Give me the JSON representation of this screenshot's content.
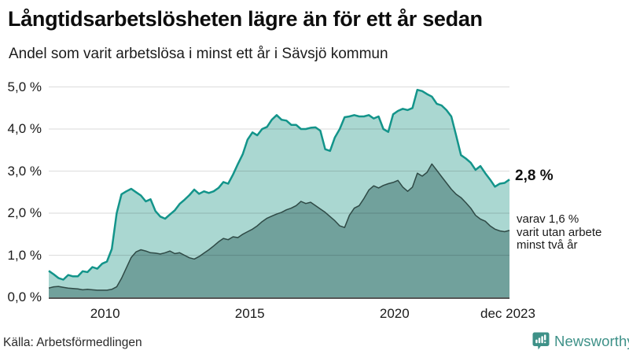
{
  "header": {
    "title": "Långtidsarbetslösheten lägre än för ett år sedan",
    "subtitle": "Andel som varit arbetslösa i minst ett år i Sävsjö kommun"
  },
  "footer": {
    "source": "Källa: Arbetsförmedlingen",
    "brand": "Newsworthy",
    "brand_color": "#3e9188"
  },
  "chart_data": {
    "type": "area",
    "unit": "%",
    "x_range": [
      2008,
      2023.9167
    ],
    "ylim": [
      0,
      5
    ],
    "grid_color": "rgba(0,0,0,0.12)",
    "baseline_color": "#555555",
    "yticks": [
      {
        "label": "0,0 %",
        "value": 0
      },
      {
        "label": "1,0 %",
        "value": 1
      },
      {
        "label": "2,0 %",
        "value": 2
      },
      {
        "label": "3,0 %",
        "value": 3
      },
      {
        "label": "4,0 %",
        "value": 4
      },
      {
        "label": "5,0 %",
        "value": 5
      }
    ],
    "xticks": [
      {
        "label": "2010",
        "year": 2010
      },
      {
        "label": "2015",
        "year": 2015
      },
      {
        "label": "2020",
        "year": 2020
      },
      {
        "label": "dec 2023",
        "year": 2023.9167
      }
    ],
    "series": [
      {
        "name": "Arbetslösa minst ett år",
        "stroke": "#13948a",
        "fill": "#aad7d1",
        "stroke_width": 2.5,
        "values": [
          0.63,
          0.55,
          0.46,
          0.42,
          0.53,
          0.5,
          0.5,
          0.62,
          0.6,
          0.72,
          0.68,
          0.8,
          0.85,
          1.15,
          2.0,
          2.45,
          2.52,
          2.58,
          2.5,
          2.42,
          2.28,
          2.33,
          2.05,
          1.92,
          1.87,
          1.97,
          2.07,
          2.22,
          2.32,
          2.43,
          2.56,
          2.46,
          2.52,
          2.48,
          2.52,
          2.6,
          2.74,
          2.7,
          2.92,
          3.17,
          3.4,
          3.75,
          3.92,
          3.85,
          4.0,
          4.05,
          4.22,
          4.33,
          4.22,
          4.2,
          4.1,
          4.1,
          4.0,
          4.0,
          4.03,
          4.04,
          3.96,
          3.52,
          3.48,
          3.8,
          4.0,
          4.28,
          4.3,
          4.33,
          4.3,
          4.3,
          4.33,
          4.25,
          4.3,
          4.0,
          3.93,
          4.35,
          4.43,
          4.48,
          4.45,
          4.5,
          4.93,
          4.9,
          4.83,
          4.77,
          4.6,
          4.56,
          4.45,
          4.3,
          3.85,
          3.38,
          3.3,
          3.2,
          3.03,
          3.12,
          2.95,
          2.8,
          2.63,
          2.7,
          2.72,
          2.8
        ]
      },
      {
        "name": "Arbetslösa minst två år",
        "stroke": "#2f4a46",
        "fill": "#71a19c",
        "stroke_width": 1.5,
        "values": [
          0.22,
          0.25,
          0.26,
          0.24,
          0.22,
          0.21,
          0.2,
          0.18,
          0.19,
          0.18,
          0.17,
          0.17,
          0.17,
          0.19,
          0.25,
          0.45,
          0.7,
          0.95,
          1.08,
          1.13,
          1.1,
          1.06,
          1.05,
          1.03,
          1.06,
          1.1,
          1.04,
          1.06,
          1.0,
          0.94,
          0.91,
          0.97,
          1.05,
          1.13,
          1.22,
          1.32,
          1.4,
          1.37,
          1.44,
          1.42,
          1.5,
          1.56,
          1.62,
          1.7,
          1.8,
          1.88,
          1.93,
          1.98,
          2.02,
          2.08,
          2.12,
          2.18,
          2.28,
          2.23,
          2.26,
          2.18,
          2.1,
          2.02,
          1.92,
          1.82,
          1.7,
          1.66,
          1.95,
          2.12,
          2.18,
          2.35,
          2.55,
          2.65,
          2.6,
          2.66,
          2.7,
          2.73,
          2.78,
          2.62,
          2.52,
          2.62,
          2.95,
          2.88,
          2.97,
          3.17,
          3.02,
          2.87,
          2.72,
          2.57,
          2.45,
          2.37,
          2.25,
          2.12,
          1.95,
          1.86,
          1.81,
          1.7,
          1.62,
          1.58,
          1.56,
          1.59
        ]
      }
    ],
    "annotations": {
      "value_label": "2,8 %",
      "note_lines": [
        "varav 1,6 %",
        "varit utan arbete",
        "minst två år"
      ]
    }
  }
}
